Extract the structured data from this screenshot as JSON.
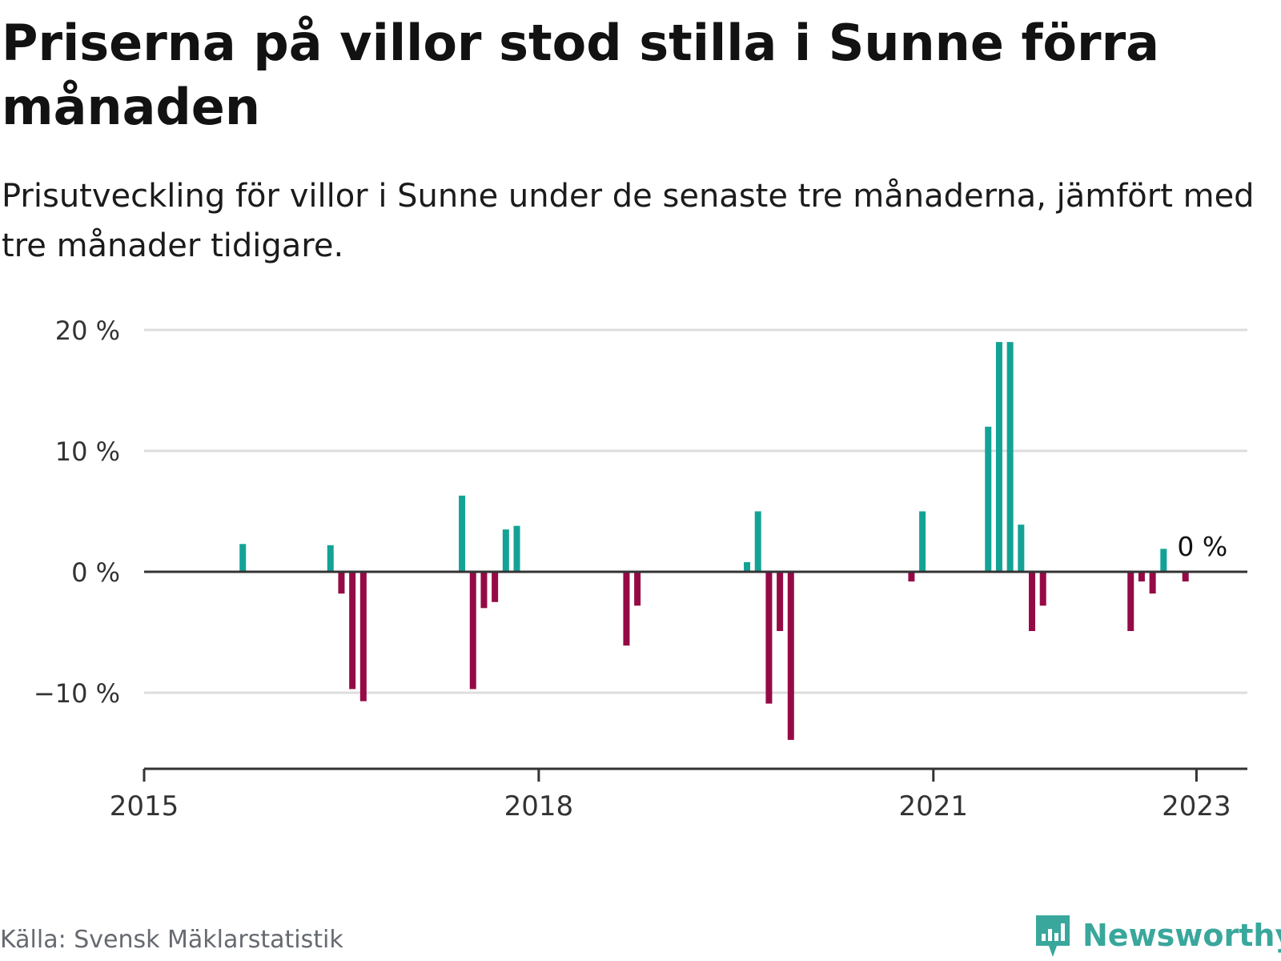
{
  "title": "Priserna på villor stod stilla i Sunne förra månaden",
  "subtitle": "Prisutveckling för villor i Sunne under de senaste tre månaderna, jämfört med tre månader tidigare.",
  "source": "Källa: Svensk Mäklarstatistik",
  "brand": "Newsworthy",
  "colors": {
    "positive": "#13a396",
    "negative": "#950a45",
    "grid": "#dddddd",
    "axis": "#333333",
    "brand": "#39a79c"
  },
  "chart_data": {
    "type": "bar",
    "title": "Priserna på villor stod stilla i Sunne förra månaden",
    "ylim": [
      -16,
      20
    ],
    "yticks": [
      20,
      10,
      0,
      -10
    ],
    "ytick_labels": [
      "20 %",
      "10 %",
      "0 %",
      "−10 %"
    ],
    "xticks": [
      "2015",
      "2018",
      "2021",
      "2023"
    ],
    "grid": true,
    "annotation": "0 %",
    "annotation_date": "2023-01",
    "series": [
      {
        "points": [
          {
            "x": "2015-10",
            "y": 2.3
          },
          {
            "x": "2016-06",
            "y": 2.2
          },
          {
            "x": "2016-07",
            "y": -1.8
          },
          {
            "x": "2016-08",
            "y": -9.7
          },
          {
            "x": "2016-09",
            "y": -10.7
          },
          {
            "x": "2017-06",
            "y": 6.3
          },
          {
            "x": "2017-07",
            "y": -9.7
          },
          {
            "x": "2017-08",
            "y": -3.0
          },
          {
            "x": "2017-09",
            "y": -2.5
          },
          {
            "x": "2017-10",
            "y": 3.5
          },
          {
            "x": "2017-11",
            "y": 3.8
          },
          {
            "x": "2018-09",
            "y": -6.1
          },
          {
            "x": "2018-10",
            "y": -2.8
          },
          {
            "x": "2019-08",
            "y": 0.8
          },
          {
            "x": "2019-09",
            "y": 5.0
          },
          {
            "x": "2019-10",
            "y": -10.9
          },
          {
            "x": "2019-11",
            "y": -4.9
          },
          {
            "x": "2019-12",
            "y": -13.9
          },
          {
            "x": "2020-11",
            "y": -0.8
          },
          {
            "x": "2020-12",
            "y": 5.0
          },
          {
            "x": "2021-06",
            "y": 12.0
          },
          {
            "x": "2021-07",
            "y": 19.0
          },
          {
            "x": "2021-08",
            "y": 19.0
          },
          {
            "x": "2021-09",
            "y": 3.9
          },
          {
            "x": "2021-10",
            "y": -4.9
          },
          {
            "x": "2021-11",
            "y": -2.8
          },
          {
            "x": "2022-07",
            "y": -4.9
          },
          {
            "x": "2022-08",
            "y": -0.8
          },
          {
            "x": "2022-09",
            "y": -1.8
          },
          {
            "x": "2022-10",
            "y": 1.9
          },
          {
            "x": "2022-12",
            "y": -0.8
          },
          {
            "x": "2023-01",
            "y": 0.0
          }
        ]
      }
    ]
  }
}
